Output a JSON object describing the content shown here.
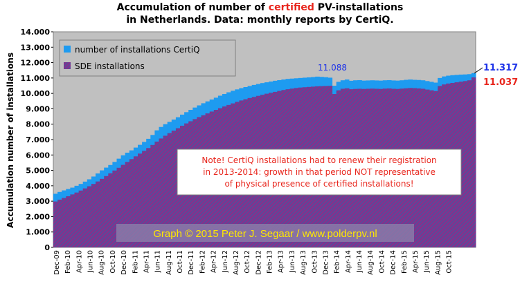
{
  "title": {
    "line1_before": "Accumulation  of  number  of ",
    "line1_highlight": "certified",
    "line1_after": "  PV-installations",
    "line2": "in  Netherlands.  Data:  monthly  reports  by  CertiQ."
  },
  "colors": {
    "plot_bg": "#c0c0c0",
    "certiq": "#1e9bf0",
    "sde_a": "#8a2e8a",
    "sde_b": "#5a4a9a",
    "note_red": "#e8261d",
    "credit_bg": "#8a7aa8",
    "credit_text": "#ffe800",
    "ann_blue": "#1c32e8"
  },
  "legend": {
    "certiq": "number of installations CertiQ",
    "sde": "SDE installations"
  },
  "note": {
    "line1": "Note!  CertiQ  installations  had  to  renew  their  registration",
    "line2": "in  2013-2014:  growth  in  that  period  NOT  representative",
    "line3": "of  physical  presence  of  certified  installations!"
  },
  "credit": "Graph © 2015 Peter J. Segaar / www.polderpv.nl",
  "annotations": {
    "peak": "11.088",
    "last_certiq": "11.317",
    "last_sde": "11.037"
  },
  "chart_data": {
    "type": "bar",
    "ylabel": "Accumulation  number  of  installations",
    "ylim": [
      0,
      14000
    ],
    "y_ticks": [
      "0",
      "1.000",
      "2.000",
      "3.000",
      "4.000",
      "5.000",
      "6.000",
      "7.000",
      "8.000",
      "9.000",
      "10.000",
      "11.000",
      "12.000",
      "13.000",
      "14.000"
    ],
    "x_tick_labels": [
      "Dec-09",
      "Feb-10",
      "Apr-10",
      "Jun-10",
      "Aug-10",
      "Oct-10",
      "Dec-10",
      "Feb-11",
      "Apr-11",
      "Jun-11",
      "Aug-11",
      "Oct-11",
      "Dec-11",
      "Feb-12",
      "Apr-12",
      "Jun-12",
      "Aug-12",
      "Oct-12",
      "Dec-12",
      "Feb-13",
      "Apr-13",
      "Jun-13",
      "Aug-13",
      "Oct-13",
      "Dec-13",
      "Feb-14",
      "Apr-14",
      "Jun-14",
      "Aug-14",
      "Oct-14",
      "Dec-14",
      "Feb-15",
      "Apr-15",
      "Jun-15",
      "Aug-15",
      "Oct-15"
    ],
    "series": [
      {
        "name": "number of installations CertiQ",
        "values": [
          3480,
          3600,
          3700,
          3790,
          3880,
          4000,
          4120,
          4270,
          4420,
          4600,
          4800,
          5000,
          5180,
          5350,
          5550,
          5760,
          5980,
          6150,
          6300,
          6480,
          6660,
          6850,
          7050,
          7300,
          7600,
          7820,
          8000,
          8150,
          8300,
          8450,
          8620,
          8780,
          8930,
          9080,
          9220,
          9360,
          9480,
          9600,
          9720,
          9850,
          9960,
          10070,
          10170,
          10260,
          10340,
          10410,
          10480,
          10550,
          10610,
          10670,
          10720,
          10770,
          10820,
          10860,
          10900,
          10940,
          10960,
          10980,
          11000,
          11020,
          11040,
          11060,
          11088,
          11070,
          11050,
          11020,
          10500,
          10750,
          10850,
          10900,
          10820,
          10850,
          10860,
          10830,
          10840,
          10850,
          10840,
          10830,
          10850,
          10860,
          10840,
          10830,
          10850,
          10880,
          10900,
          10880,
          10870,
          10850,
          10800,
          10750,
          10700,
          11000,
          11100,
          11150,
          11180,
          11200,
          11220,
          11230,
          11250,
          11317
        ]
      },
      {
        "name": "SDE installations",
        "values": [
          2980,
          3100,
          3210,
          3320,
          3440,
          3560,
          3690,
          3830,
          3970,
          4120,
          4280,
          4450,
          4630,
          4810,
          4990,
          5170,
          5360,
          5550,
          5730,
          5910,
          6090,
          6270,
          6450,
          6650,
          6870,
          7070,
          7250,
          7420,
          7580,
          7740,
          7900,
          8050,
          8190,
          8330,
          8460,
          8580,
          8700,
          8820,
          8930,
          9040,
          9150,
          9250,
          9350,
          9450,
          9540,
          9620,
          9700,
          9770,
          9840,
          9910,
          9980,
          10040,
          10100,
          10160,
          10220,
          10270,
          10310,
          10350,
          10380,
          10400,
          10420,
          10440,
          10460,
          10470,
          10480,
          10490,
          9960,
          10200,
          10300,
          10330,
          10270,
          10290,
          10300,
          10290,
          10300,
          10310,
          10300,
          10290,
          10310,
          10320,
          10300,
          10290,
          10310,
          10330,
          10350,
          10340,
          10320,
          10300,
          10250,
          10200,
          10150,
          10480,
          10580,
          10640,
          10680,
          10720,
          10760,
          10800,
          10850,
          11037
        ]
      }
    ],
    "legend_position": "top-left",
    "grid": false
  }
}
